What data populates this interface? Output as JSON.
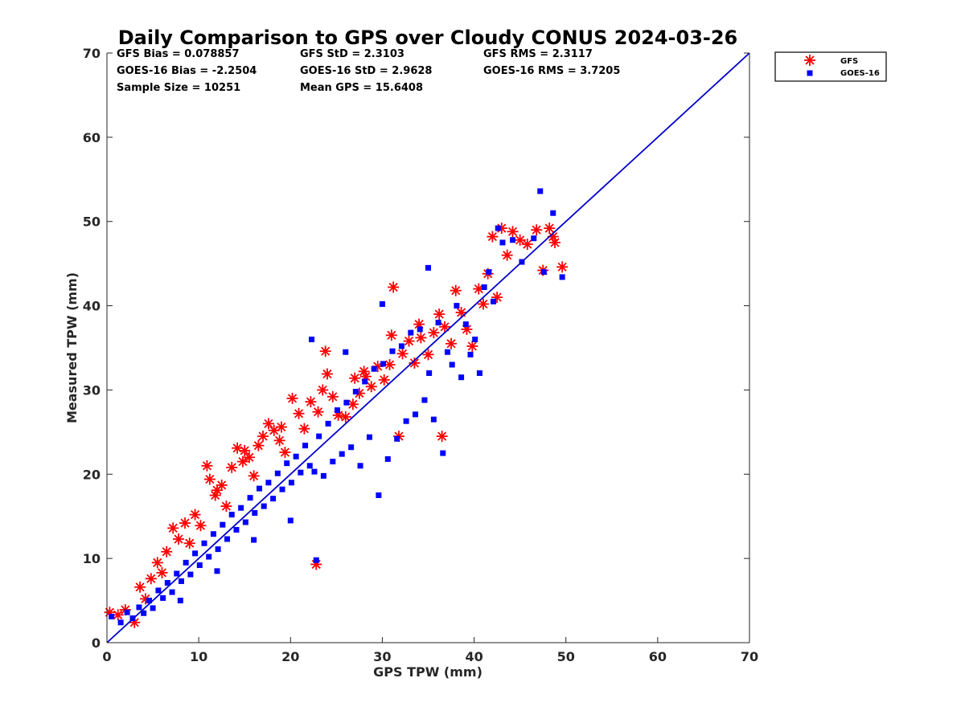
{
  "chart_data": {
    "type": "scatter",
    "title": "Daily Comparison to GPS over Cloudy CONUS 2024-03-26",
    "xlabel": "GPS TPW (mm)",
    "ylabel": "Measured TPW (mm)",
    "xlim": [
      0,
      70
    ],
    "ylim": [
      0,
      70
    ],
    "xticks": [
      "0",
      "10",
      "20",
      "30",
      "40",
      "50",
      "60",
      "70"
    ],
    "yticks": [
      "0",
      "10",
      "20",
      "30",
      "40",
      "50",
      "60",
      "70"
    ],
    "legend_position": "outside-top-right",
    "stats": [
      [
        "GFS Bias = 0.078857",
        "GFS StD = 2.3103",
        "GFS RMS = 2.3117"
      ],
      [
        "GOES-16 Bias = -2.2504",
        "GOES-16 StD = 2.9628",
        "GOES-16 RMS = 3.7205"
      ],
      [
        "Sample Size = 10251",
        "Mean GPS = 15.6408",
        ""
      ]
    ],
    "reference_line": {
      "name": "1:1",
      "from": [
        0,
        0
      ],
      "to": [
        70,
        70
      ],
      "color": "#0000cc"
    },
    "series": [
      {
        "name": "GFS",
        "marker": "asterisk",
        "color": "#ff0000",
        "points": [
          [
            0.3,
            3.6
          ],
          [
            1.2,
            3.3
          ],
          [
            2.0,
            3.9
          ],
          [
            3.0,
            2.4
          ],
          [
            3.6,
            6.6
          ],
          [
            4.2,
            5.2
          ],
          [
            4.8,
            7.6
          ],
          [
            5.5,
            9.5
          ],
          [
            6.0,
            8.3
          ],
          [
            6.5,
            10.8
          ],
          [
            7.2,
            13.6
          ],
          [
            7.8,
            12.3
          ],
          [
            8.5,
            14.2
          ],
          [
            9.0,
            11.8
          ],
          [
            9.6,
            15.2
          ],
          [
            10.2,
            13.9
          ],
          [
            10.9,
            21.0
          ],
          [
            11.2,
            19.4
          ],
          [
            11.8,
            17.5
          ],
          [
            12.5,
            18.7
          ],
          [
            13.0,
            16.2
          ],
          [
            13.6,
            20.8
          ],
          [
            14.2,
            23.1
          ],
          [
            14.8,
            21.5
          ],
          [
            15.5,
            22.0
          ],
          [
            16.0,
            19.8
          ],
          [
            16.5,
            23.4
          ],
          [
            17.0,
            24.5
          ],
          [
            17.6,
            26.0
          ],
          [
            18.2,
            25.2
          ],
          [
            18.8,
            24.0
          ],
          [
            19.4,
            22.6
          ],
          [
            20.2,
            29.0
          ],
          [
            20.9,
            27.2
          ],
          [
            21.5,
            25.4
          ],
          [
            22.2,
            28.6
          ],
          [
            22.8,
            9.3
          ],
          [
            23.5,
            30.0
          ],
          [
            23.8,
            34.6
          ],
          [
            24.0,
            31.9
          ],
          [
            24.6,
            29.2
          ],
          [
            25.2,
            27.0
          ],
          [
            26.0,
            26.8
          ],
          [
            26.8,
            28.3
          ],
          [
            27.5,
            29.6
          ],
          [
            28.2,
            31.6
          ],
          [
            28.8,
            30.4
          ],
          [
            29.5,
            32.8
          ],
          [
            30.2,
            31.2
          ],
          [
            30.8,
            33.0
          ],
          [
            31.2,
            42.2
          ],
          [
            31.0,
            36.5
          ],
          [
            31.8,
            24.5
          ],
          [
            32.2,
            34.3
          ],
          [
            32.9,
            35.8
          ],
          [
            33.5,
            33.2
          ],
          [
            34.2,
            36.2
          ],
          [
            35.0,
            34.2
          ],
          [
            35.6,
            36.8
          ],
          [
            36.2,
            39.0
          ],
          [
            36.5,
            24.5
          ],
          [
            36.8,
            37.5
          ],
          [
            37.5,
            35.5
          ],
          [
            38.0,
            41.8
          ],
          [
            38.6,
            39.2
          ],
          [
            39.2,
            37.2
          ],
          [
            39.8,
            35.2
          ],
          [
            40.5,
            42.0
          ],
          [
            41.0,
            40.2
          ],
          [
            41.5,
            43.8
          ],
          [
            42.0,
            48.2
          ],
          [
            42.5,
            41.0
          ],
          [
            43.0,
            49.2
          ],
          [
            43.6,
            46.0
          ],
          [
            44.2,
            48.8
          ],
          [
            45.0,
            47.8
          ],
          [
            45.8,
            47.3
          ],
          [
            46.8,
            49.0
          ],
          [
            47.5,
            44.2
          ],
          [
            48.2,
            49.2
          ],
          [
            48.6,
            48.2
          ],
          [
            48.8,
            47.5
          ],
          [
            49.6,
            44.6
          ],
          [
            12.0,
            18.1
          ],
          [
            15.0,
            22.8
          ],
          [
            19.0,
            25.6
          ],
          [
            23.0,
            27.4
          ],
          [
            27.0,
            31.4
          ],
          [
            34.0,
            37.8
          ],
          [
            28.0,
            32.2
          ]
        ]
      },
      {
        "name": "GOES-16",
        "marker": "square",
        "color": "#0000ff",
        "points": [
          [
            0.5,
            3.1
          ],
          [
            1.5,
            2.4
          ],
          [
            2.2,
            3.6
          ],
          [
            2.8,
            2.9
          ],
          [
            3.5,
            4.2
          ],
          [
            4.0,
            3.5
          ],
          [
            4.6,
            5.0
          ],
          [
            5.0,
            4.1
          ],
          [
            5.6,
            6.2
          ],
          [
            6.1,
            5.3
          ],
          [
            6.6,
            7.1
          ],
          [
            7.1,
            6.0
          ],
          [
            7.6,
            8.2
          ],
          [
            8.1,
            7.3
          ],
          [
            8.6,
            9.5
          ],
          [
            9.1,
            8.1
          ],
          [
            9.6,
            10.6
          ],
          [
            10.1,
            9.2
          ],
          [
            10.6,
            11.8
          ],
          [
            11.1,
            10.2
          ],
          [
            11.6,
            12.9
          ],
          [
            12.1,
            11.1
          ],
          [
            12.6,
            14.0
          ],
          [
            13.1,
            12.3
          ],
          [
            13.6,
            15.2
          ],
          [
            14.1,
            13.4
          ],
          [
            14.6,
            16.0
          ],
          [
            15.1,
            14.3
          ],
          [
            15.6,
            17.2
          ],
          [
            16.1,
            15.4
          ],
          [
            16.6,
            18.3
          ],
          [
            17.1,
            16.2
          ],
          [
            17.6,
            19.0
          ],
          [
            18.1,
            17.1
          ],
          [
            18.6,
            20.1
          ],
          [
            19.1,
            18.2
          ],
          [
            19.6,
            21.3
          ],
          [
            20.1,
            19.0
          ],
          [
            20.6,
            22.1
          ],
          [
            21.1,
            20.2
          ],
          [
            21.6,
            23.4
          ],
          [
            22.1,
            21.0
          ],
          [
            22.6,
            20.3
          ],
          [
            22.8,
            9.8
          ],
          [
            23.1,
            24.5
          ],
          [
            23.6,
            19.8
          ],
          [
            24.1,
            26.0
          ],
          [
            24.6,
            21.5
          ],
          [
            25.1,
            27.6
          ],
          [
            25.6,
            22.4
          ],
          [
            26.1,
            28.5
          ],
          [
            26.6,
            23.2
          ],
          [
            27.1,
            29.8
          ],
          [
            27.6,
            21.0
          ],
          [
            28.1,
            31.0
          ],
          [
            28.6,
            24.4
          ],
          [
            29.1,
            32.5
          ],
          [
            29.6,
            17.5
          ],
          [
            30.1,
            33.1
          ],
          [
            30.6,
            21.8
          ],
          [
            31.1,
            34.6
          ],
          [
            31.6,
            24.2
          ],
          [
            32.1,
            35.2
          ],
          [
            32.6,
            26.3
          ],
          [
            33.1,
            36.8
          ],
          [
            33.6,
            27.1
          ],
          [
            34.1,
            37.2
          ],
          [
            34.6,
            28.8
          ],
          [
            35.1,
            32.0
          ],
          [
            35.6,
            26.5
          ],
          [
            36.1,
            38.0
          ],
          [
            36.6,
            22.5
          ],
          [
            37.1,
            34.5
          ],
          [
            37.6,
            33.0
          ],
          [
            38.1,
            40.0
          ],
          [
            38.6,
            31.5
          ],
          [
            39.1,
            37.8
          ],
          [
            39.6,
            34.2
          ],
          [
            40.1,
            36.0
          ],
          [
            40.6,
            32.0
          ],
          [
            41.1,
            42.2
          ],
          [
            41.6,
            44.0
          ],
          [
            42.1,
            40.5
          ],
          [
            42.6,
            49.2
          ],
          [
            43.1,
            47.5
          ],
          [
            44.2,
            47.8
          ],
          [
            45.2,
            45.2
          ],
          [
            46.5,
            48.0
          ],
          [
            47.2,
            53.6
          ],
          [
            47.6,
            44.0
          ],
          [
            48.6,
            51.0
          ],
          [
            49.6,
            43.4
          ],
          [
            26.0,
            34.5
          ],
          [
            30.0,
            40.2
          ],
          [
            22.3,
            36.0
          ],
          [
            35.0,
            44.5
          ],
          [
            20.0,
            14.5
          ],
          [
            16.0,
            12.2
          ],
          [
            12.0,
            8.5
          ],
          [
            8.0,
            5.0
          ]
        ]
      }
    ]
  }
}
